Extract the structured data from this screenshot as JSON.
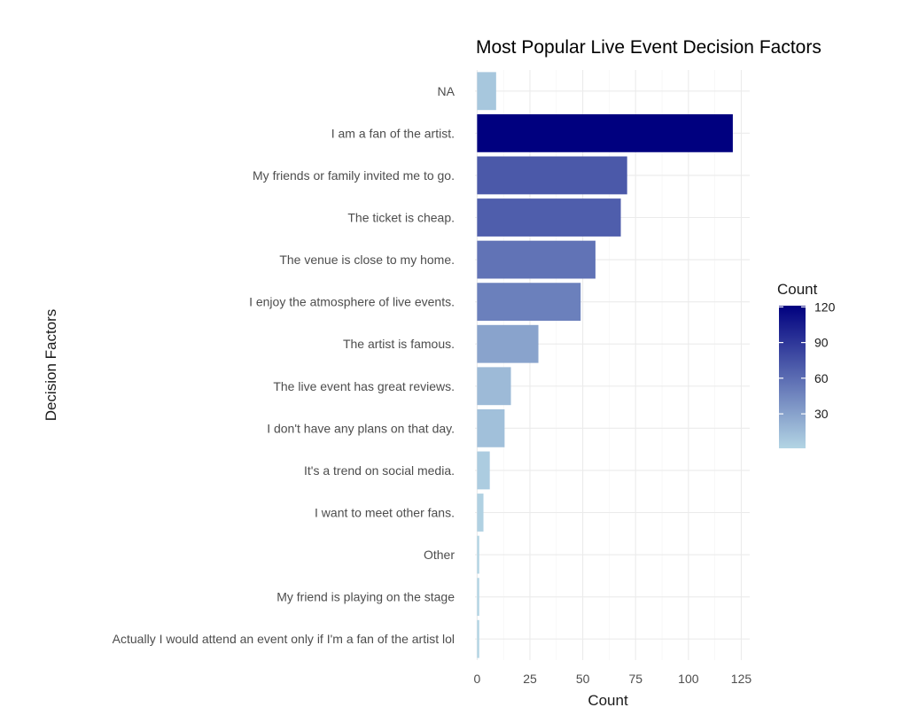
{
  "chart_data": {
    "type": "bar",
    "orientation": "horizontal",
    "title": "Most Popular Live Event Decision Factors",
    "xlabel": "Count",
    "ylabel": "Decision Factors",
    "xlim": [
      -1,
      129
    ],
    "xticks": [
      0,
      25,
      50,
      75,
      100,
      125
    ],
    "grid": true,
    "categories": [
      "NA",
      "I am a fan of the artist.",
      "My friends or family invited me to go.",
      "The ticket is cheap.",
      "The venue is close to my home.",
      "I enjoy the atmosphere of live events.",
      "The artist is famous.",
      "The live event has great reviews.",
      "I don't have any plans on that day.",
      "It's a trend on social media.",
      "I want to meet other fans.",
      "Other",
      "My friend is playing on the stage",
      "Actually I would attend an event only if I'm a fan of the artist lol"
    ],
    "values": [
      9,
      121,
      71,
      68,
      56,
      49,
      29,
      16,
      13,
      6,
      3,
      1,
      1,
      1
    ],
    "legend": {
      "title": "Count",
      "position": "right",
      "breaks": [
        120,
        90,
        60,
        30
      ],
      "range": [
        1,
        121
      ],
      "low_color": "#b3d5e4",
      "high_color": "#00007f"
    }
  }
}
